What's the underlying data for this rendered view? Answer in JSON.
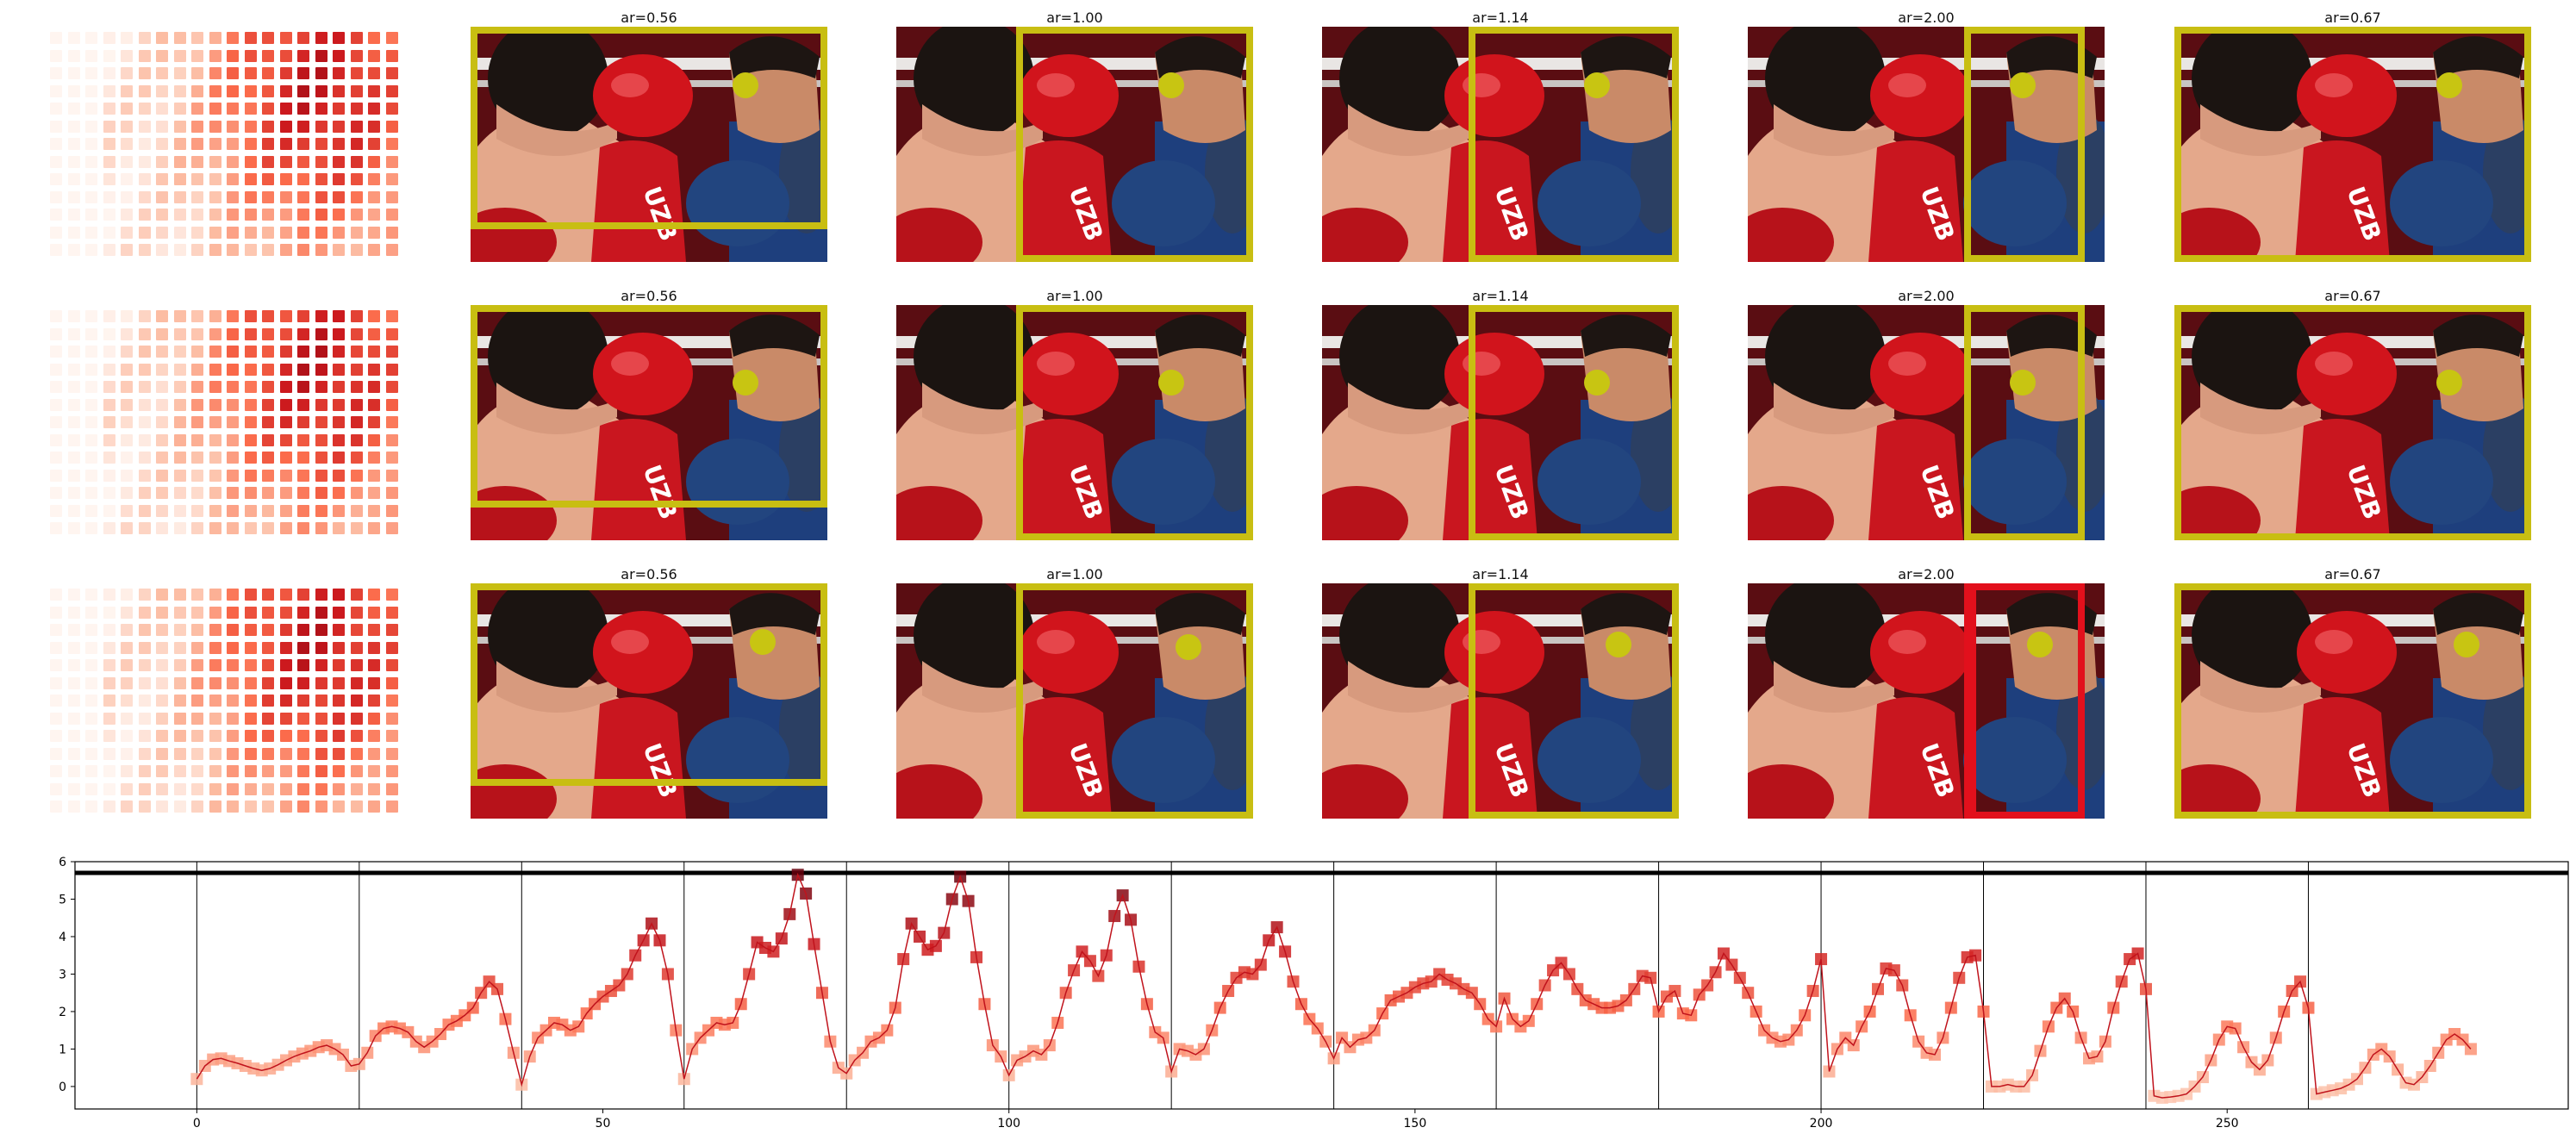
{
  "figure": {
    "rows": [
      {
        "panels": [
          {
            "kind": "heatmap"
          },
          {
            "kind": "crop",
            "title": "ar=0.56",
            "crop": "wide_low",
            "dot": [
              0.77,
              0.25
            ],
            "box_color": "#c8be12"
          },
          {
            "kind": "crop",
            "title": "ar=1.00",
            "crop": "right_square",
            "dot": [
              0.77,
              0.25
            ],
            "box_color": "#c8be12"
          },
          {
            "kind": "crop",
            "title": "ar=1.14",
            "crop": "right_114",
            "dot": [
              0.77,
              0.25
            ],
            "box_color": "#c8be12"
          },
          {
            "kind": "crop",
            "title": "ar=2.00",
            "crop": "right_tall",
            "dot": [
              0.77,
              0.25
            ],
            "box_color": "#c8be12"
          },
          {
            "kind": "crop",
            "title": "ar=0.67",
            "crop": "full",
            "dot": [
              0.77,
              0.25
            ],
            "box_color": "#c8be12"
          }
        ]
      },
      {
        "panels": [
          {
            "kind": "heatmap"
          },
          {
            "kind": "crop",
            "title": "ar=0.56",
            "crop": "wide_low",
            "dot": [
              0.77,
              0.33
            ],
            "box_color": "#c8be12"
          },
          {
            "kind": "crop",
            "title": "ar=1.00",
            "crop": "right_square",
            "dot": [
              0.77,
              0.33
            ],
            "box_color": "#c8be12"
          },
          {
            "kind": "crop",
            "title": "ar=1.14",
            "crop": "right_114",
            "dot": [
              0.77,
              0.33
            ],
            "box_color": "#c8be12"
          },
          {
            "kind": "crop",
            "title": "ar=2.00",
            "crop": "right_tall",
            "dot": [
              0.77,
              0.33
            ],
            "box_color": "#c8be12"
          },
          {
            "kind": "crop",
            "title": "ar=0.67",
            "crop": "full",
            "dot": [
              0.77,
              0.33
            ],
            "box_color": "#c8be12"
          }
        ]
      },
      {
        "panels": [
          {
            "kind": "heatmap"
          },
          {
            "kind": "crop",
            "title": "ar=0.56",
            "crop": "wide_low",
            "dot": [
              0.82,
              0.25
            ],
            "box_color": "#c8be12"
          },
          {
            "kind": "crop",
            "title": "ar=1.00",
            "crop": "right_square",
            "dot": [
              0.82,
              0.27
            ],
            "box_color": "#c8be12"
          },
          {
            "kind": "crop",
            "title": "ar=1.14",
            "crop": "right_114",
            "dot": [
              0.83,
              0.26
            ],
            "box_color": "#c8be12"
          },
          {
            "kind": "crop",
            "title": "ar=2.00",
            "crop": "right_tall",
            "dot": [
              0.82,
              0.26
            ],
            "box_color": "#e2101c"
          },
          {
            "kind": "crop",
            "title": "ar=0.67",
            "crop": "full",
            "dot": [
              0.82,
              0.26
            ],
            "box_color": "#c8be12"
          }
        ]
      }
    ]
  },
  "chart_data": {
    "type": "line",
    "xlim": [
      -15,
      292
    ],
    "ylim": [
      -0.6,
      6
    ],
    "xticks": [
      0,
      50,
      100,
      150,
      200,
      250
    ],
    "yticks": [
      0,
      1,
      2,
      3,
      4,
      5,
      6
    ],
    "segment_boundaries": [
      0,
      20,
      40,
      60,
      80,
      100,
      120,
      140,
      160,
      180,
      200,
      220,
      240,
      260
    ],
    "threshold": 5.7,
    "line_color": "#c0131c",
    "series": [
      {
        "values": [
          0.2,
          0.55,
          0.72,
          0.75,
          0.68,
          0.62,
          0.55,
          0.48,
          0.43,
          0.48,
          0.58,
          0.7,
          0.8,
          0.88,
          0.95,
          1.05,
          1.1,
          1.0,
          0.85,
          0.55,
          0.6,
          0.9,
          1.35,
          1.55,
          1.6,
          1.55,
          1.45,
          1.2,
          1.05,
          1.2,
          1.4,
          1.65,
          1.75,
          1.9,
          2.1,
          2.5,
          2.8,
          2.6,
          1.8,
          0.9,
          0.05,
          0.8,
          1.3,
          1.5,
          1.7,
          1.65,
          1.5,
          1.6,
          1.95,
          2.2,
          2.4,
          2.55,
          2.7,
          3.0,
          3.5,
          3.9,
          4.35,
          3.9,
          3.0,
          1.5,
          0.2,
          1.0,
          1.3,
          1.5,
          1.7,
          1.65,
          1.7,
          2.2,
          3.0,
          3.85,
          3.7,
          3.6,
          3.95,
          4.6,
          5.65,
          5.15,
          3.8,
          2.5,
          1.2,
          0.5,
          0.35,
          0.7,
          0.9,
          1.2,
          1.3,
          1.5,
          2.1,
          3.4,
          4.35,
          4.0,
          3.65,
          3.75,
          4.1,
          5.0,
          5.6,
          4.95,
          3.45,
          2.2,
          1.1,
          0.8,
          0.3,
          0.7,
          0.8,
          0.95,
          0.85,
          1.1,
          1.7,
          2.5,
          3.1,
          3.6,
          3.35,
          2.95,
          3.5,
          4.55,
          5.1,
          4.45,
          3.2,
          2.2,
          1.45,
          1.3,
          0.4,
          1.0,
          0.95,
          0.85,
          1.0,
          1.5,
          2.1,
          2.55,
          2.9,
          3.05,
          3.0,
          3.25,
          3.9,
          4.25,
          3.6,
          2.8,
          2.2,
          1.8,
          1.55,
          1.2,
          0.75,
          1.3,
          1.05,
          1.25,
          1.3,
          1.5,
          1.95,
          2.3,
          2.4,
          2.5,
          2.65,
          2.75,
          2.8,
          3.0,
          2.85,
          2.75,
          2.6,
          2.5,
          2.2,
          1.8,
          1.6,
          2.35,
          1.8,
          1.6,
          1.75,
          2.2,
          2.7,
          3.1,
          3.3,
          3.0,
          2.6,
          2.3,
          2.2,
          2.1,
          2.1,
          2.15,
          2.3,
          2.6,
          2.95,
          2.9,
          2.0,
          2.4,
          2.55,
          1.95,
          1.9,
          2.45,
          2.7,
          3.05,
          3.55,
          3.25,
          2.9,
          2.5,
          2.0,
          1.5,
          1.3,
          1.2,
          1.25,
          1.5,
          1.9,
          2.55,
          3.4,
          0.4,
          1.0,
          1.3,
          1.1,
          1.6,
          2.0,
          2.6,
          3.15,
          3.1,
          2.7,
          1.9,
          1.2,
          0.9,
          0.85,
          1.3,
          2.1,
          2.9,
          3.45,
          3.5,
          2.0,
          0.0,
          0.0,
          0.05,
          0.0,
          0.0,
          0.3,
          0.95,
          1.6,
          2.1,
          2.35,
          2.0,
          1.3,
          0.75,
          0.8,
          1.2,
          2.1,
          2.8,
          3.4,
          3.55,
          2.6,
          -0.25,
          -0.3,
          -0.28,
          -0.25,
          -0.2,
          0.0,
          0.25,
          0.7,
          1.25,
          1.6,
          1.55,
          1.05,
          0.65,
          0.45,
          0.7,
          1.3,
          2.0,
          2.55,
          2.8,
          2.1,
          -0.2,
          -0.15,
          -0.1,
          -0.05,
          0.05,
          0.2,
          0.5,
          0.85,
          1.0,
          0.8,
          0.45,
          0.1,
          0.05,
          0.25,
          0.55,
          0.9,
          1.25,
          1.4,
          1.25,
          1.0
        ]
      }
    ]
  }
}
